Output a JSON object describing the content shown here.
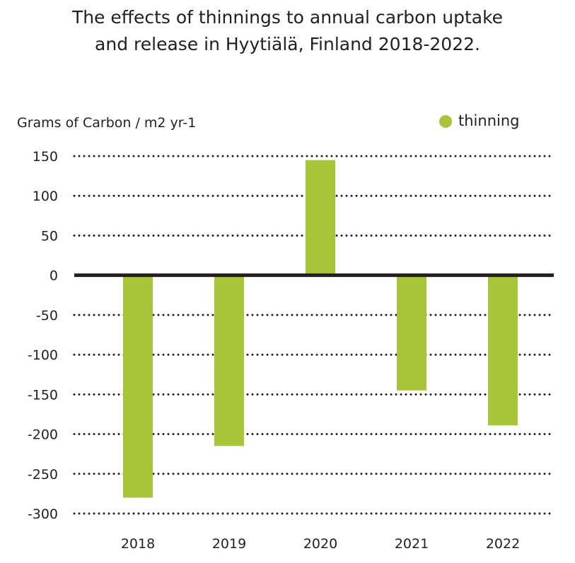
{
  "chart_data": {
    "type": "bar",
    "title_lines": [
      "The effects of thinnings to annual carbon uptake",
      "and release in Hyytiälä, Finland 2018-2022."
    ],
    "ylabel": "Grams of Carbon / m2  yr-1",
    "xlabel": "",
    "categories": [
      "2018",
      "2019",
      "2020",
      "2021",
      "2022"
    ],
    "series": [
      {
        "name": "thinning",
        "values": [
          -280,
          -215,
          145,
          -145,
          -189
        ],
        "color": "#a8c43a"
      }
    ],
    "ylim": [
      -300,
      150
    ],
    "yticks": [
      150,
      100,
      50,
      0,
      -50,
      -100,
      -150,
      -200,
      -250,
      -300
    ],
    "grid": "dotted horizontal",
    "legend": "top-right",
    "zero_line_color": "#231f20"
  }
}
